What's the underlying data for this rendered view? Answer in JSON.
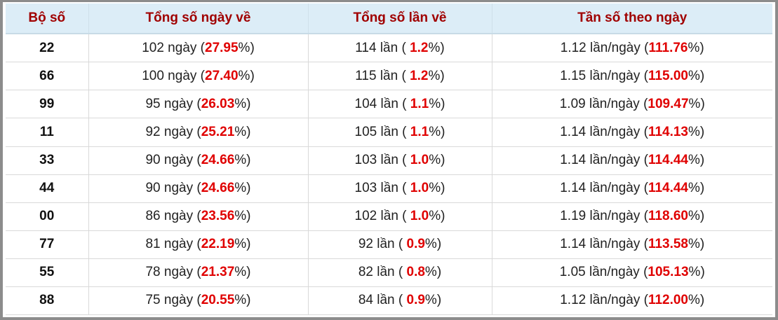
{
  "table": {
    "header": [
      "Bộ số",
      "Tổng số ngày về",
      "Tổng số lần về",
      "Tần số theo ngày"
    ],
    "rows": [
      [
        "22",
        [
          "102 ngày (",
          "27.95",
          "%)"
        ],
        [
          "114 lần ( ",
          "1.2",
          "%)"
        ],
        [
          "1.12 lần/ngày (",
          "111.76",
          "%)"
        ]
      ],
      [
        "66",
        [
          "100 ngày (",
          "27.40",
          "%)"
        ],
        [
          "115 lần ( ",
          "1.2",
          "%)"
        ],
        [
          "1.15 lần/ngày (",
          "115.00",
          "%)"
        ]
      ],
      [
        "99",
        [
          "95 ngày (",
          "26.03",
          "%)"
        ],
        [
          "104 lần ( ",
          "1.1",
          "%)"
        ],
        [
          "1.09 lần/ngày (",
          "109.47",
          "%)"
        ]
      ],
      [
        "11",
        [
          "92 ngày (",
          "25.21",
          "%)"
        ],
        [
          "105 lần ( ",
          "1.1",
          "%)"
        ],
        [
          "1.14 lần/ngày (",
          "114.13",
          "%)"
        ]
      ],
      [
        "33",
        [
          "90 ngày (",
          "24.66",
          "%)"
        ],
        [
          "103 lần ( ",
          "1.0",
          "%)"
        ],
        [
          "1.14 lần/ngày (",
          "114.44",
          "%)"
        ]
      ],
      [
        "44",
        [
          "90 ngày (",
          "24.66",
          "%)"
        ],
        [
          "103 lần ( ",
          "1.0",
          "%)"
        ],
        [
          "1.14 lần/ngày (",
          "114.44",
          "%)"
        ]
      ],
      [
        "00",
        [
          "86 ngày (",
          "23.56",
          "%)"
        ],
        [
          "102 lần ( ",
          "1.0",
          "%)"
        ],
        [
          "1.19 lần/ngày (",
          "118.60",
          "%)"
        ]
      ],
      [
        "77",
        [
          "81 ngày (",
          "22.19",
          "%)"
        ],
        [
          "92 lần ( ",
          "0.9",
          "%)"
        ],
        [
          "1.14 lần/ngày (",
          "113.58",
          "%)"
        ]
      ],
      [
        "55",
        [
          "78 ngày (",
          "21.37",
          "%)"
        ],
        [
          "82 lần ( ",
          "0.8",
          "%)"
        ],
        [
          "1.05 lần/ngày (",
          "105.13",
          "%)"
        ]
      ],
      [
        "88",
        [
          "75 ngày (",
          "20.55",
          "%)"
        ],
        [
          "84 lần ( ",
          "0.9",
          "%)"
        ],
        [
          "1.12 lần/ngày (",
          "112.00",
          "%)"
        ]
      ]
    ]
  }
}
